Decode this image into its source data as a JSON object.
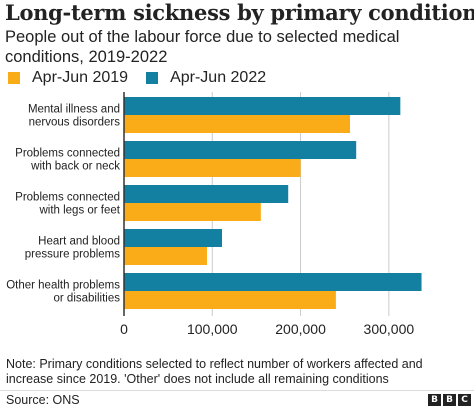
{
  "title": "Long-term sickness by primary condition",
  "subtitle": "People out of the labour force due to selected medical conditions, 2019-2022",
  "note": "Note: Primary conditions selected to reflect number of workers affected and increase since 2019. 'Other' does not include all remaining conditions",
  "source": "Source: ONS",
  "logo": {
    "letters": [
      "B",
      "B",
      "C"
    ]
  },
  "colors": {
    "apr_jun_2019": "#FAAB18",
    "apr_jun_2022": "#1380A1",
    "gridline": "#cbcbcb",
    "baseline": "#333333"
  },
  "chart_data": {
    "type": "bar",
    "orientation": "horizontal",
    "categories": [
      [
        "Mental illness and",
        "nervous disorders"
      ],
      [
        "Problems connected",
        "with back or neck"
      ],
      [
        "Problems connected",
        "with legs or feet"
      ],
      [
        "Heart and blood",
        "pressure problems"
      ],
      [
        "Other health problems",
        "or disabilities"
      ]
    ],
    "series": [
      {
        "name": "Apr-Jun 2022",
        "values": [
          313000,
          263000,
          186000,
          111000,
          337000
        ]
      },
      {
        "name": "Apr-Jun 2019",
        "values": [
          256000,
          200000,
          155000,
          94000,
          240000
        ]
      }
    ],
    "legend_order": [
      "Apr-Jun 2019",
      "Apr-Jun 2022"
    ],
    "xlim": [
      0,
      350000
    ],
    "xticks": [
      0,
      100000,
      200000,
      300000
    ],
    "xtick_labels": [
      "0",
      "100,000",
      "200,000",
      "300,000"
    ],
    "grid": true,
    "legend_position": "top-left"
  }
}
